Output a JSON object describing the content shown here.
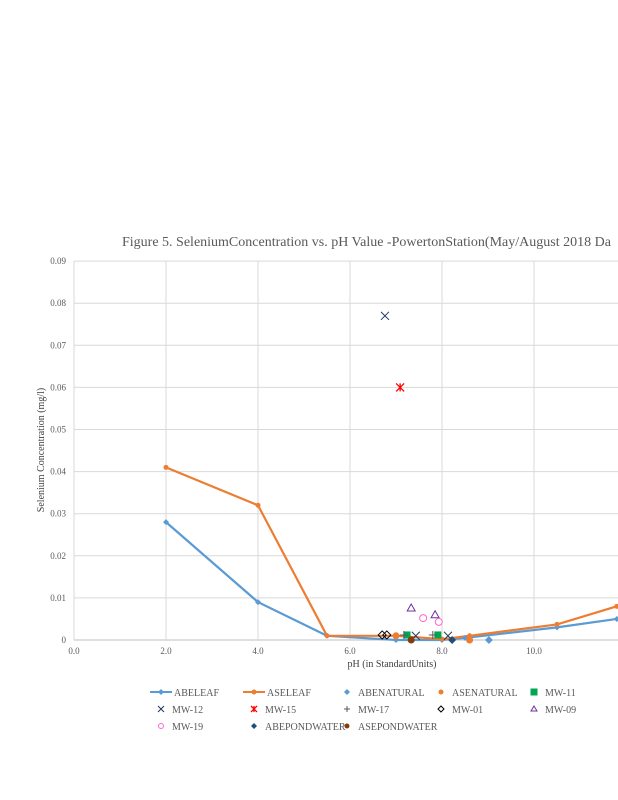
{
  "chart_data": {
    "type": "scatter",
    "title": "Figure 5. SeleniumConcentration  vs. pH Value  -PowertonStation(May/August   2018 Da",
    "xlabel": "pH (in StandardUnits)",
    "ylabel": "Selenium Concentration  (mg/l)",
    "xlim": [
      0,
      11.8
    ],
    "ylim": [
      0,
      0.09
    ],
    "xticks": [
      "0.0",
      "2.0",
      "4.0",
      "6.0",
      "8.0",
      "10.0"
    ],
    "xtick_values": [
      0,
      2,
      4,
      6,
      8,
      10
    ],
    "yticks": [
      "0",
      "0.01",
      "0.02",
      "0.03",
      "0.04",
      "0.05",
      "0.06",
      "0.07",
      "0.08",
      "0.09"
    ],
    "ytick_values": [
      0,
      0.01,
      0.02,
      0.03,
      0.04,
      0.05,
      0.06,
      0.07,
      0.08,
      0.09
    ],
    "grid": true,
    "legend": "bottom",
    "series": [
      {
        "name": "ABELEAF",
        "kind": "line",
        "marker": "diamond",
        "color": "#5b9bd5",
        "points": [
          [
            2,
            0.028
          ],
          [
            4,
            0.009
          ],
          [
            5.5,
            0.001
          ],
          [
            7,
            0.0
          ],
          [
            8,
            0.0
          ],
          [
            8.5,
            0.0005
          ],
          [
            10.5,
            0.003
          ],
          [
            11.8,
            0.005
          ]
        ]
      },
      {
        "name": "ASELEAF",
        "kind": "line",
        "marker": "circle",
        "color": "#ed7d31",
        "points": [
          [
            2,
            0.041
          ],
          [
            4,
            0.032
          ],
          [
            5.5,
            0.001
          ],
          [
            7,
            0.001
          ],
          [
            8,
            0.0002
          ],
          [
            8.6,
            0.001
          ],
          [
            10.5,
            0.0037
          ],
          [
            11.8,
            0.008
          ]
        ]
      },
      {
        "name": "ABENATURAL",
        "kind": "point",
        "marker": "diamond",
        "color": "#5b9bd5",
        "points": [
          [
            9.02,
            0.0
          ]
        ]
      },
      {
        "name": "ASENATURAL",
        "kind": "point",
        "marker": "circle",
        "color": "#ed7d31",
        "points": [
          [
            7.0,
            0.001
          ],
          [
            8.6,
            0.0
          ]
        ]
      },
      {
        "name": "MW-11",
        "kind": "point",
        "marker": "square",
        "color": "#00a651",
        "points": [
          [
            7.24,
            0.0012
          ],
          [
            7.91,
            0.0012
          ]
        ]
      },
      {
        "name": "MW-12",
        "kind": "point",
        "marker": "x",
        "color": "#1f3864",
        "points": [
          [
            6.76,
            0.077
          ],
          [
            7.43,
            0.001
          ],
          [
            8.13,
            0.001
          ]
        ]
      },
      {
        "name": "MW-15",
        "kind": "point",
        "marker": "star",
        "color": "#ff0000",
        "points": [
          [
            7.09,
            0.06
          ]
        ]
      },
      {
        "name": "MW-17",
        "kind": "point",
        "marker": "plus",
        "color": "#595959",
        "points": [
          [
            7.17,
            0.0012
          ],
          [
            7.8,
            0.0012
          ]
        ]
      },
      {
        "name": "MW-01",
        "kind": "point",
        "marker": "odiamond",
        "color": "#000000",
        "points": [
          [
            6.7,
            0.0012
          ],
          [
            6.8,
            0.0012
          ]
        ]
      },
      {
        "name": "MW-09",
        "kind": "point",
        "marker": "triangle",
        "color": "#7030a0",
        "points": [
          [
            7.33,
            0.0076
          ],
          [
            7.85,
            0.006
          ]
        ]
      },
      {
        "name": "MW-19",
        "kind": "point",
        "marker": "ocircle",
        "color": "#ff66cc",
        "points": [
          [
            7.59,
            0.0052
          ],
          [
            7.93,
            0.0043
          ]
        ]
      },
      {
        "name": "ABEPONDWATER",
        "kind": "point",
        "marker": "diamond",
        "color": "#1f4e79",
        "points": [
          [
            8.22,
            0.0
          ]
        ]
      },
      {
        "name": "ASEPONDWATER",
        "kind": "point",
        "marker": "circle",
        "color": "#843c0c",
        "points": [
          [
            7.33,
            0.0
          ]
        ]
      }
    ]
  }
}
